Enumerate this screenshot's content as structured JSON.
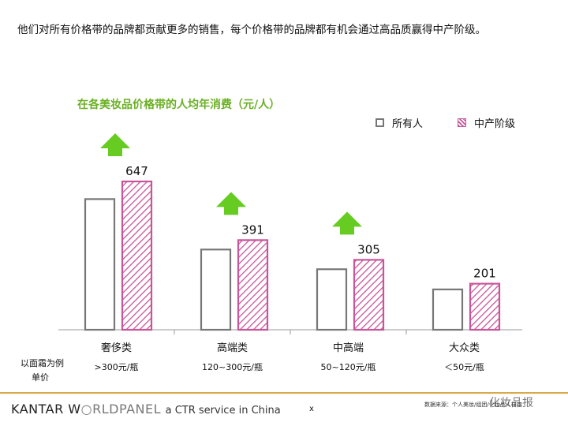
{
  "headline": "他们对所有价格带的品牌都贡献更多的销售，每个价格带的品牌都有机会通过高品质赢得中产阶级。",
  "chart_data": {
    "type": "bar",
    "title": "在各美妆品价格带的人均年消费（元/人）",
    "categories": [
      "奢侈类",
      "高端类",
      "中高端",
      "大众类"
    ],
    "price_labels": [
      ">300元/瓶",
      "120~300元/瓶",
      "50~120元/瓶",
      "＜50元/瓶"
    ],
    "series": [
      {
        "name": "所有人",
        "values": [
          570,
          350,
          264,
          176
        ],
        "data_labels": [
          "",
          "",
          "",
          ""
        ],
        "color": "#777777",
        "style": "outline"
      },
      {
        "name": "中产阶级",
        "values": [
          647,
          391,
          305,
          201
        ],
        "data_labels": [
          "647",
          "391",
          "305",
          "201"
        ],
        "color": "#c8559a",
        "style": "hatched"
      }
    ],
    "up_arrows": [
      true,
      true,
      true,
      false
    ],
    "ylim": [
      0,
      680
    ],
    "xlabel": "",
    "ylabel": "",
    "grid": false,
    "legend_position": "top-right"
  },
  "row_label": {
    "line1": "以面霜为例",
    "line2": "单价"
  },
  "footer": {
    "brand_a": "KANTAR W",
    "brand_b": "RLDPANEL",
    "brand_sub": "a CTR service in China",
    "page": "x",
    "source": "数据来源：个人美妆/组团/化妆品人样本",
    "watermark": "化妆品报"
  },
  "colors": {
    "accent_green": "#6ab023",
    "arrow_green": "#66cc22",
    "footer_line": "#d8a94a"
  }
}
